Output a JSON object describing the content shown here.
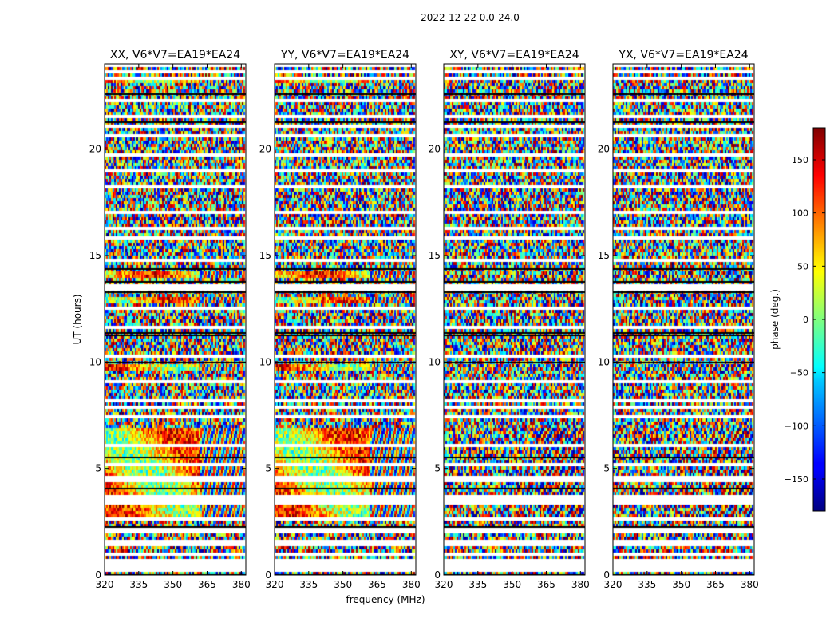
{
  "chart_data": {
    "type": "heatmap",
    "title": "2022-12-22 0.0-24.0",
    "xlabel": "frequency (MHz)",
    "ylabel": "UT (hours)",
    "xlim": [
      320,
      382
    ],
    "ylim": [
      0,
      24
    ],
    "x_ticks": [
      "320",
      "335",
      "350",
      "365",
      "380"
    ],
    "x_tick_values": [
      320,
      335,
      350,
      365,
      380
    ],
    "y_ticks": [
      "0",
      "5",
      "10",
      "15",
      "20"
    ],
    "y_tick_values": [
      0,
      5,
      10,
      15,
      20
    ],
    "panels": [
      {
        "title": "XX, V6*V7=EA19*EA24",
        "polarization": "XX",
        "coherent_bands": true
      },
      {
        "title": "YY, V6*V7=EA19*EA24",
        "polarization": "YY",
        "coherent_bands": true
      },
      {
        "title": "XY, V6*V7=EA19*EA24",
        "polarization": "XY",
        "coherent_bands": false
      },
      {
        "title": "YX, V6*V7=EA19*EA24",
        "polarization": "YX",
        "coherent_bands": false
      }
    ],
    "colorbar": {
      "label": "phase (deg.)",
      "range": [
        -180,
        180
      ],
      "ticks": [
        "150",
        "100",
        "50",
        "0",
        "−50",
        "−100",
        "−150"
      ],
      "tick_values": [
        150,
        100,
        50,
        0,
        -50,
        -100,
        -150
      ],
      "colormap": "jet"
    },
    "flagged_gaps_ut": [
      0.3,
      0.6,
      1.0,
      1.5,
      2.1,
      2.65,
      3.4,
      3.6,
      4.5,
      5.2,
      6.1,
      7.4,
      7.9,
      8.2,
      9.1,
      10.3,
      11.6,
      12.5,
      13.5,
      14.8,
      15.8,
      16.3,
      17.0,
      18.2,
      19.0,
      19.7,
      20.6,
      21.1,
      21.5,
      22.3,
      23.3,
      23.6,
      23.9
    ],
    "dark_lines_ut": [
      0.05,
      2.3,
      4.1,
      5.55,
      10.0,
      11.3,
      11.4,
      13.3,
      13.8,
      14.4,
      21.3,
      22.6
    ],
    "coherent_bands_ut": [
      [
        0.2,
        0.45
      ],
      [
        2.75,
        3.3
      ],
      [
        3.75,
        6.9
      ],
      [
        9.55,
        9.85
      ],
      [
        12.8,
        13.05
      ],
      [
        14.0,
        14.3
      ],
      [
        23.05,
        23.35
      ]
    ]
  }
}
